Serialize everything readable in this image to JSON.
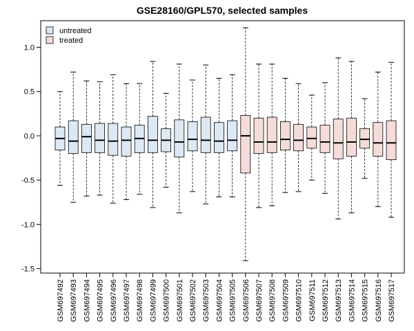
{
  "chart_data": {
    "type": "boxplot",
    "title": "GSE28160/GPL570, selected samples",
    "xlabel": "",
    "ylabel": "",
    "ylim": [
      -1.55,
      1.3
    ],
    "yticks": [
      -1.5,
      -1.0,
      -0.5,
      0.0,
      0.5,
      1.0
    ],
    "ytick_labels": [
      "-1.5",
      "-1.0",
      "-0.5",
      "0.0",
      "0.5",
      "1.0"
    ],
    "grid": false,
    "legend": {
      "position": "top-left",
      "entries": [
        {
          "label": "untreated",
          "color": "#dce9f5"
        },
        {
          "label": "treated",
          "color": "#f5dcd9"
        }
      ]
    },
    "groups": {
      "untreated": "#dce9f5",
      "treated": "#f5dcd9"
    },
    "samples": [
      {
        "name": "GSM697492",
        "group": "untreated",
        "whisker_low": -0.56,
        "q1": -0.16,
        "median": -0.03,
        "q3": 0.1,
        "whisker_high": 0.5
      },
      {
        "name": "GSM697493",
        "group": "untreated",
        "whisker_low": -0.75,
        "q1": -0.2,
        "median": -0.06,
        "q3": 0.17,
        "whisker_high": 0.72
      },
      {
        "name": "GSM697494",
        "group": "untreated",
        "whisker_low": -0.68,
        "q1": -0.19,
        "median": -0.01,
        "q3": 0.13,
        "whisker_high": 0.62
      },
      {
        "name": "GSM697495",
        "group": "untreated",
        "whisker_low": -0.67,
        "q1": -0.19,
        "median": -0.05,
        "q3": 0.14,
        "whisker_high": 0.61
      },
      {
        "name": "GSM697496",
        "group": "untreated",
        "whisker_low": -0.76,
        "q1": -0.22,
        "median": -0.06,
        "q3": 0.14,
        "whisker_high": 0.69
      },
      {
        "name": "GSM697497",
        "group": "untreated",
        "whisker_low": -0.72,
        "q1": -0.23,
        "median": -0.05,
        "q3": 0.1,
        "whisker_high": 0.59
      },
      {
        "name": "GSM697498",
        "group": "untreated",
        "whisker_low": -0.66,
        "q1": -0.19,
        "median": -0.03,
        "q3": 0.12,
        "whisker_high": 0.59
      },
      {
        "name": "GSM697499",
        "group": "untreated",
        "whisker_low": -0.81,
        "q1": -0.19,
        "median": -0.05,
        "q3": 0.22,
        "whisker_high": 0.84
      },
      {
        "name": "GSM697500",
        "group": "untreated",
        "whisker_low": -0.58,
        "q1": -0.18,
        "median": -0.05,
        "q3": 0.08,
        "whisker_high": 0.48
      },
      {
        "name": "GSM697501",
        "group": "untreated",
        "whisker_low": -0.87,
        "q1": -0.24,
        "median": -0.07,
        "q3": 0.18,
        "whisker_high": 0.81
      },
      {
        "name": "GSM697502",
        "group": "untreated",
        "whisker_low": -0.63,
        "q1": -0.17,
        "median": -0.04,
        "q3": 0.16,
        "whisker_high": 0.63
      },
      {
        "name": "GSM697503",
        "group": "untreated",
        "whisker_low": -0.77,
        "q1": -0.19,
        "median": -0.05,
        "q3": 0.21,
        "whisker_high": 0.8
      },
      {
        "name": "GSM697504",
        "group": "untreated",
        "whisker_low": -0.69,
        "q1": -0.19,
        "median": -0.06,
        "q3": 0.15,
        "whisker_high": 0.65
      },
      {
        "name": "GSM697505",
        "group": "untreated",
        "whisker_low": -0.69,
        "q1": -0.17,
        "median": -0.05,
        "q3": 0.17,
        "whisker_high": 0.69
      },
      {
        "name": "GSM697506",
        "group": "treated",
        "whisker_low": -1.41,
        "q1": -0.42,
        "median": 0.0,
        "q3": 0.23,
        "whisker_high": 1.22
      },
      {
        "name": "GSM697507",
        "group": "treated",
        "whisker_low": -0.81,
        "q1": -0.2,
        "median": -0.07,
        "q3": 0.2,
        "whisker_high": 0.81
      },
      {
        "name": "GSM697508",
        "group": "treated",
        "whisker_low": -0.79,
        "q1": -0.19,
        "median": -0.07,
        "q3": 0.21,
        "whisker_high": 0.81
      },
      {
        "name": "GSM697509",
        "group": "treated",
        "whisker_low": -0.64,
        "q1": -0.16,
        "median": -0.04,
        "q3": 0.16,
        "whisker_high": 0.65
      },
      {
        "name": "GSM697510",
        "group": "treated",
        "whisker_low": -0.63,
        "q1": -0.17,
        "median": -0.05,
        "q3": 0.13,
        "whisker_high": 0.59
      },
      {
        "name": "GSM697511",
        "group": "treated",
        "whisker_low": -0.5,
        "q1": -0.14,
        "median": -0.03,
        "q3": 0.1,
        "whisker_high": 0.46
      },
      {
        "name": "GSM697512",
        "group": "treated",
        "whisker_low": -0.65,
        "q1": -0.19,
        "median": -0.07,
        "q3": 0.12,
        "whisker_high": 0.6
      },
      {
        "name": "GSM697513",
        "group": "treated",
        "whisker_low": -0.94,
        "q1": -0.26,
        "median": -0.08,
        "q3": 0.19,
        "whisker_high": 0.88
      },
      {
        "name": "GSM697514",
        "group": "treated",
        "whisker_low": -0.87,
        "q1": -0.23,
        "median": -0.07,
        "q3": 0.2,
        "whisker_high": 0.84
      },
      {
        "name": "GSM697515",
        "group": "treated",
        "whisker_low": -0.48,
        "q1": -0.14,
        "median": -0.04,
        "q3": 0.08,
        "whisker_high": 0.42
      },
      {
        "name": "GSM697516",
        "group": "treated",
        "whisker_low": -0.8,
        "q1": -0.23,
        "median": -0.08,
        "q3": 0.15,
        "whisker_high": 0.72
      },
      {
        "name": "GSM697517",
        "group": "treated",
        "whisker_low": -0.92,
        "q1": -0.27,
        "median": -0.08,
        "q3": 0.17,
        "whisker_high": 0.83
      }
    ]
  }
}
